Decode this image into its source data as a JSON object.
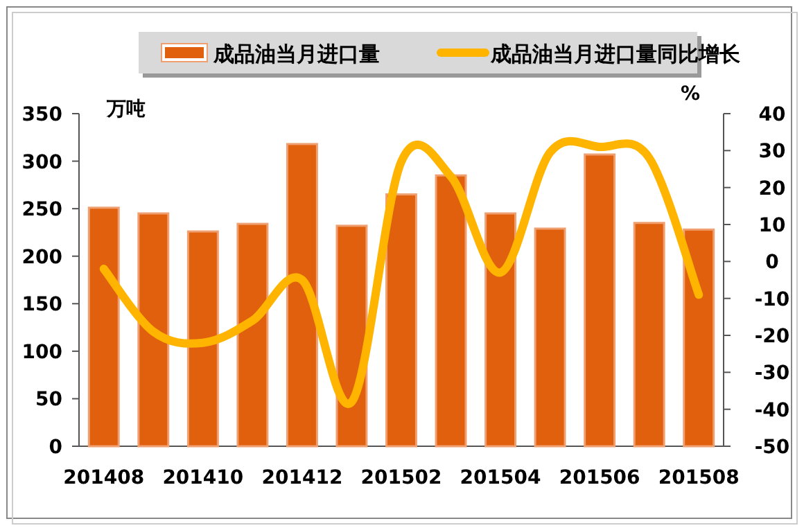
{
  "chart_data": {
    "type": "bar",
    "categories": [
      "201408",
      null,
      "201410",
      null,
      "201412",
      null,
      "201502",
      null,
      "201504",
      null,
      "201506",
      null,
      "201508"
    ],
    "series": [
      {
        "name": "成品油当月进口量",
        "color": "#e0600e",
        "values": [
          251,
          245,
          226,
          234,
          318,
          232,
          265,
          285,
          245,
          229,
          307,
          235,
          228
        ]
      },
      {
        "name": "成品油当月进口量同比增长",
        "type": "line",
        "axis": "y2",
        "color": "#ffb400",
        "values": [
          -2,
          -19,
          -22,
          -16,
          -5,
          -38,
          27,
          23,
          -3,
          29.5,
          31,
          28,
          -9
        ]
      }
    ],
    "ylabel": "万吨",
    "y2label": "%",
    "ylim": [
      0,
      350
    ],
    "yticks": [
      0,
      50,
      100,
      150,
      200,
      250,
      300,
      350
    ],
    "y2lim": [
      -50,
      40
    ],
    "y2ticks": [
      -50,
      -40,
      -30,
      -20,
      -10,
      0,
      10,
      20,
      30,
      40
    ],
    "legend": "top",
    "grid": false
  }
}
